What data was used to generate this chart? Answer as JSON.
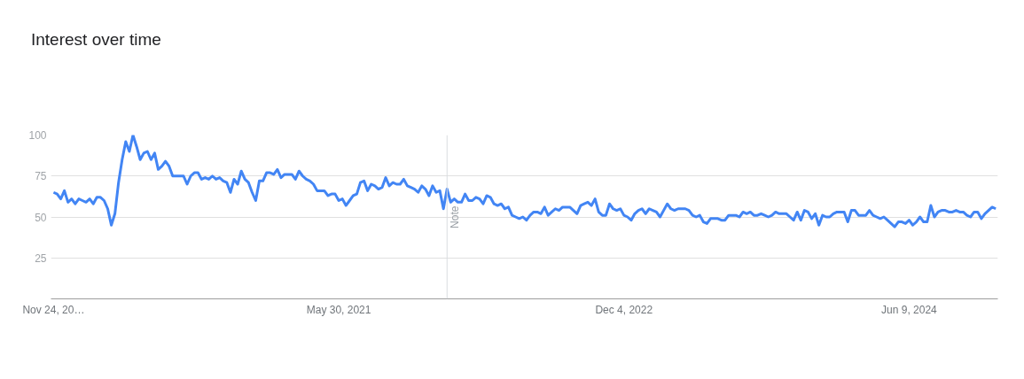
{
  "chart_data": {
    "type": "line",
    "title": "Interest over time",
    "x": [
      "2019-11-24",
      "2019-12-01",
      "2019-12-08",
      "2019-12-15",
      "2019-12-22",
      "2019-12-29",
      "2020-01-05",
      "2020-01-12",
      "2020-01-19",
      "2020-01-26",
      "2020-02-02",
      "2020-02-09",
      "2020-02-16",
      "2020-02-23",
      "2020-03-01",
      "2020-03-08",
      "2020-03-15",
      "2020-03-22",
      "2020-03-29",
      "2020-04-05",
      "2020-04-12",
      "2020-04-19",
      "2020-04-26",
      "2020-05-03",
      "2020-05-10",
      "2020-05-17",
      "2020-05-24",
      "2020-05-31",
      "2020-06-07",
      "2020-06-14",
      "2020-06-21",
      "2020-06-28",
      "2020-07-05",
      "2020-07-12",
      "2020-07-19",
      "2020-07-26",
      "2020-08-02",
      "2020-08-09",
      "2020-08-16",
      "2020-08-23",
      "2020-08-30",
      "2020-09-06",
      "2020-09-13",
      "2020-09-20",
      "2020-09-27",
      "2020-10-04",
      "2020-10-11",
      "2020-10-18",
      "2020-10-25",
      "2020-11-01",
      "2020-11-08",
      "2020-11-15",
      "2020-11-22",
      "2020-11-29",
      "2020-12-06",
      "2020-12-13",
      "2020-12-20",
      "2020-12-27",
      "2021-01-03",
      "2021-01-10",
      "2021-01-17",
      "2021-01-24",
      "2021-01-31",
      "2021-02-07",
      "2021-02-14",
      "2021-02-21",
      "2021-02-28",
      "2021-03-07",
      "2021-03-14",
      "2021-03-21",
      "2021-03-28",
      "2021-04-04",
      "2021-04-11",
      "2021-04-18",
      "2021-04-25",
      "2021-05-02",
      "2021-05-09",
      "2021-05-16",
      "2021-05-23",
      "2021-05-30",
      "2021-06-06",
      "2021-06-13",
      "2021-06-20",
      "2021-06-27",
      "2021-07-04",
      "2021-07-11",
      "2021-07-18",
      "2021-07-25",
      "2021-08-01",
      "2021-08-08",
      "2021-08-15",
      "2021-08-22",
      "2021-08-29",
      "2021-09-05",
      "2021-09-12",
      "2021-09-19",
      "2021-09-26",
      "2021-10-03",
      "2021-10-10",
      "2021-10-17",
      "2021-10-24",
      "2021-10-31",
      "2021-11-07",
      "2021-11-14",
      "2021-11-21",
      "2021-11-28",
      "2021-12-05",
      "2021-12-12",
      "2021-12-19",
      "2021-12-26",
      "2022-01-02",
      "2022-01-09",
      "2022-01-16",
      "2022-01-23",
      "2022-01-30",
      "2022-02-06",
      "2022-02-13",
      "2022-02-20",
      "2022-02-27",
      "2022-03-06",
      "2022-03-13",
      "2022-03-20",
      "2022-03-27",
      "2022-04-03",
      "2022-04-10",
      "2022-04-17",
      "2022-04-24",
      "2022-05-01",
      "2022-05-08",
      "2022-05-15",
      "2022-05-22",
      "2022-05-29",
      "2022-06-05",
      "2022-06-12",
      "2022-06-19",
      "2022-06-26",
      "2022-07-03",
      "2022-07-10",
      "2022-07-17",
      "2022-07-24",
      "2022-07-31",
      "2022-08-07",
      "2022-08-14",
      "2022-08-21",
      "2022-08-28",
      "2022-09-04",
      "2022-09-11",
      "2022-09-18",
      "2022-09-25",
      "2022-10-02",
      "2022-10-09",
      "2022-10-16",
      "2022-10-23",
      "2022-10-30",
      "2022-11-06",
      "2022-11-13",
      "2022-11-20",
      "2022-11-27",
      "2022-12-04",
      "2022-12-11",
      "2022-12-18",
      "2022-12-25",
      "2023-01-01",
      "2023-01-08",
      "2023-01-15",
      "2023-01-22",
      "2023-01-29",
      "2023-02-05",
      "2023-02-12",
      "2023-02-19",
      "2023-02-26",
      "2023-03-05",
      "2023-03-12",
      "2023-03-19",
      "2023-03-26",
      "2023-04-02",
      "2023-04-09",
      "2023-04-16",
      "2023-04-23",
      "2023-04-30",
      "2023-05-07",
      "2023-05-14",
      "2023-05-21",
      "2023-05-28",
      "2023-06-04",
      "2023-06-11",
      "2023-06-18",
      "2023-06-25",
      "2023-07-02",
      "2023-07-09",
      "2023-07-16",
      "2023-07-23",
      "2023-07-30",
      "2023-08-06",
      "2023-08-13",
      "2023-08-20",
      "2023-08-27",
      "2023-09-03",
      "2023-09-10",
      "2023-09-17",
      "2023-09-24",
      "2023-10-01",
      "2023-10-08",
      "2023-10-15",
      "2023-10-22",
      "2023-10-29",
      "2023-11-05",
      "2023-11-12",
      "2023-11-19",
      "2023-11-26",
      "2023-12-03",
      "2023-12-10",
      "2023-12-17",
      "2023-12-24",
      "2023-12-31",
      "2024-01-07",
      "2024-01-14",
      "2024-01-21",
      "2024-01-28",
      "2024-02-04",
      "2024-02-11",
      "2024-02-18",
      "2024-02-25",
      "2024-03-03",
      "2024-03-10",
      "2024-03-17",
      "2024-03-24",
      "2024-03-31",
      "2024-04-07",
      "2024-04-14",
      "2024-04-21",
      "2024-04-28",
      "2024-05-05",
      "2024-05-12",
      "2024-05-19",
      "2024-05-26",
      "2024-06-02",
      "2024-06-09",
      "2024-06-16",
      "2024-06-23",
      "2024-06-30",
      "2024-07-07",
      "2024-07-14",
      "2024-07-21",
      "2024-07-28",
      "2024-08-04",
      "2024-08-11",
      "2024-08-18",
      "2024-08-25",
      "2024-09-01",
      "2024-09-08",
      "2024-09-15",
      "2024-09-22",
      "2024-09-29",
      "2024-10-06",
      "2024-10-13",
      "2024-10-20",
      "2024-10-27",
      "2024-11-03",
      "2024-11-10",
      "2024-11-17",
      "2024-11-24"
    ],
    "series": [
      {
        "color": "#4285f4",
        "values": [
          65,
          64,
          61,
          66,
          59,
          61,
          58,
          61,
          60,
          59,
          61,
          58,
          62,
          62,
          60,
          55,
          45,
          52,
          71,
          85,
          96,
          90,
          100,
          93,
          85,
          89,
          90,
          85,
          89,
          79,
          81,
          84,
          81,
          75,
          75,
          75,
          75,
          70,
          75,
          77,
          77,
          73,
          74,
          73,
          75,
          73,
          74,
          72,
          71,
          65,
          73,
          70,
          78,
          73,
          71,
          65,
          60,
          72,
          72,
          77,
          77,
          76,
          79,
          74,
          76,
          76,
          76,
          73,
          78,
          75,
          73,
          72,
          70,
          66,
          66,
          66,
          63,
          64,
          64,
          60,
          61,
          57,
          60,
          63,
          64,
          71,
          72,
          66,
          70,
          69,
          67,
          68,
          74,
          69,
          71,
          70,
          70,
          73,
          69,
          68,
          67,
          65,
          69,
          67,
          63,
          69,
          65,
          66,
          55,
          67,
          59,
          61,
          59,
          59,
          64,
          60,
          60,
          62,
          61,
          58,
          63,
          62,
          58,
          57,
          58,
          55,
          56,
          51,
          50,
          49,
          50,
          48,
          51,
          53,
          53,
          52,
          56,
          51,
          53,
          55,
          54,
          56,
          56,
          56,
          54,
          52,
          57,
          58,
          59,
          57,
          61,
          53,
          51,
          51,
          58,
          55,
          54,
          55,
          51,
          50,
          48,
          52,
          54,
          55,
          52,
          55,
          54,
          53,
          50,
          54,
          58,
          55,
          54,
          55,
          55,
          55,
          54,
          51,
          50,
          51,
          47,
          46,
          49,
          49,
          49,
          48,
          48,
          51,
          51,
          51,
          50,
          53,
          52,
          53,
          51,
          51,
          52,
          51,
          50,
          51,
          53,
          52,
          52,
          52,
          50,
          48,
          53,
          48,
          54,
          53,
          49,
          52,
          45,
          51,
          50,
          50,
          52,
          53,
          53,
          53,
          47,
          54,
          54,
          51,
          51,
          51,
          54,
          51,
          50,
          49,
          50,
          48,
          46,
          44,
          47,
          47,
          46,
          48,
          45,
          47,
          50,
          47,
          47,
          57,
          50,
          53,
          54,
          54,
          53,
          53,
          54,
          53,
          53,
          51,
          50,
          53,
          53,
          49,
          52,
          54,
          56,
          55
        ]
      }
    ],
    "xlim": [
      "2019-11-19",
      "2024-11-28"
    ],
    "ylim": [
      0,
      100
    ],
    "xticks": [
      {
        "value": "2019-11-24",
        "label": "Nov 24, 20…"
      },
      {
        "value": "2021-05-30",
        "label": "May 30, 2021"
      },
      {
        "value": "2022-12-04",
        "label": "Dec 4, 2022"
      },
      {
        "value": "2024-06-09",
        "label": "Jun 9, 2024"
      }
    ],
    "yticks": [
      25,
      50,
      75,
      100
    ],
    "grid": "y",
    "ref_lines": [
      {
        "axis": "x",
        "value": "2021-12-26",
        "label": "Note"
      }
    ]
  }
}
